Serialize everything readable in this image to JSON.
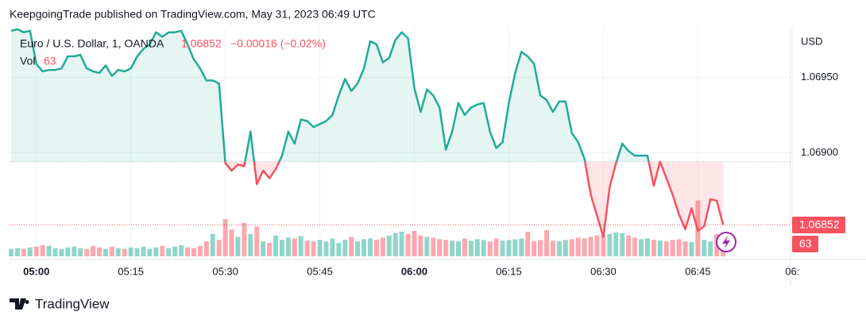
{
  "header": {
    "title": "KeepgoingTrade published on TradingView.com, May 31, 2023 06:49 UTC"
  },
  "footer": {
    "brand": "TradingView"
  },
  "chart_data": {
    "type": "baseline",
    "currency": "USD",
    "change_label": "−0.00016 (−0.02%)",
    "baseline": 1.06894,
    "up_color": "#22ab94",
    "down_color": "#f7525f",
    "grid": true,
    "x": [
      "04:56",
      "04:57",
      "04:58",
      "04:59",
      "05:00",
      "05:01",
      "05:02",
      "05:03",
      "05:04",
      "05:05",
      "05:06",
      "05:07",
      "05:08",
      "05:09",
      "05:10",
      "05:11",
      "05:12",
      "05:13",
      "05:14",
      "05:15",
      "05:16",
      "05:17",
      "05:18",
      "05:19",
      "05:20",
      "05:21",
      "05:22",
      "05:23",
      "05:24",
      "05:25",
      "05:26",
      "05:27",
      "05:28",
      "05:29",
      "05:30",
      "05:31",
      "05:32",
      "05:33",
      "05:34",
      "05:35",
      "05:36",
      "05:37",
      "05:38",
      "05:39",
      "05:40",
      "05:41",
      "05:42",
      "05:43",
      "05:44",
      "05:45",
      "05:46",
      "05:47",
      "05:48",
      "05:49",
      "05:50",
      "05:51",
      "05:52",
      "05:53",
      "05:54",
      "05:55",
      "05:56",
      "05:57",
      "05:58",
      "05:59",
      "06:00",
      "06:01",
      "06:02",
      "06:03",
      "06:04",
      "06:05",
      "06:06",
      "06:07",
      "06:08",
      "06:09",
      "06:10",
      "06:11",
      "06:12",
      "06:13",
      "06:14",
      "06:15",
      "06:16",
      "06:17",
      "06:18",
      "06:19",
      "06:20",
      "06:21",
      "06:22",
      "06:23",
      "06:24",
      "06:25",
      "06:26",
      "06:27",
      "06:28",
      "06:29",
      "06:30",
      "06:31",
      "06:32",
      "06:33",
      "06:34",
      "06:35",
      "06:36",
      "06:37",
      "06:38",
      "06:39",
      "06:40",
      "06:41",
      "06:42",
      "06:43",
      "06:44",
      "06:45",
      "06:46",
      "06:47",
      "06:48",
      "06:49"
    ],
    "series": [
      {
        "name": "Euro / U.S. Dollar, 1, OANDA",
        "values": [
          1.06981,
          1.06982,
          1.0698,
          1.06981,
          1.06959,
          1.06954,
          1.06955,
          1.06955,
          1.06956,
          1.06964,
          1.06964,
          1.06965,
          1.06956,
          1.06954,
          1.06953,
          1.06958,
          1.06951,
          1.06955,
          1.06954,
          1.06956,
          1.06964,
          1.06969,
          1.06972,
          1.0698,
          1.06977,
          1.0698,
          1.0698,
          1.06981,
          1.06972,
          1.06962,
          1.06956,
          1.06948,
          1.06948,
          1.06946,
          1.06893,
          1.06888,
          1.06892,
          1.06891,
          1.06914,
          1.06879,
          1.06888,
          1.06883,
          1.06889,
          1.06898,
          1.06914,
          1.06906,
          1.06922,
          1.06921,
          1.06917,
          1.06919,
          1.06921,
          1.06925,
          1.06938,
          1.06949,
          1.06941,
          1.06946,
          1.06956,
          1.06974,
          1.06972,
          1.0696,
          1.06963,
          1.06975,
          1.0698,
          1.06976,
          1.06943,
          1.06927,
          1.06942,
          1.06938,
          1.0693,
          1.06902,
          1.06914,
          1.06933,
          1.06925,
          1.0693,
          1.06932,
          1.06933,
          1.06914,
          1.06903,
          1.06907,
          1.06933,
          1.06953,
          1.06967,
          1.06964,
          1.06959,
          1.06938,
          1.06935,
          1.06927,
          1.06934,
          1.06934,
          1.06913,
          1.06907,
          1.06896,
          1.06872,
          1.06858,
          1.06844,
          1.06877,
          1.06893,
          1.06906,
          1.06901,
          1.06898,
          1.06898,
          1.06898,
          1.06878,
          1.06894,
          1.06883,
          1.06872,
          1.06859,
          1.06849,
          1.06863,
          1.06848,
          1.06851,
          1.06869,
          1.06868,
          1.06852
        ]
      },
      {
        "name": "Vol",
        "values": [
          20,
          22,
          20,
          24,
          26,
          30,
          28,
          22,
          20,
          24,
          26,
          22,
          20,
          28,
          24,
          20,
          26,
          22,
          20,
          24,
          22,
          26,
          20,
          24,
          28,
          22,
          26,
          30,
          24,
          22,
          28,
          40,
          60,
          44,
          100,
          72,
          52,
          90,
          60,
          80,
          40,
          36,
          56,
          44,
          50,
          48,
          54,
          42,
          40,
          44,
          40,
          48,
          36,
          44,
          52,
          40,
          46,
          48,
          44,
          50,
          56,
          62,
          66,
          60,
          68,
          56,
          52,
          50,
          46,
          44,
          42,
          40,
          48,
          42,
          46,
          44,
          40,
          48,
          42,
          44,
          46,
          48,
          66,
          40,
          44,
          70,
          42,
          40,
          44,
          46,
          50,
          48,
          52,
          56,
          58,
          60,
          64,
          62,
          56,
          50,
          46,
          48,
          44,
          42,
          40,
          44,
          46,
          40,
          38,
          150,
          44,
          40,
          60,
          63
        ]
      }
    ],
    "ylim": [
      1.0683,
      1.06983
    ],
    "yticks": [
      {
        "value": 1.0695,
        "label": "1.06950"
      },
      {
        "value": 1.069,
        "label": "1.06900"
      }
    ],
    "xticks": [
      "05:00",
      "05:15",
      "05:30",
      "05:45",
      "06:00",
      "06:15",
      "06:30",
      "06:45",
      "06:"
    ]
  }
}
